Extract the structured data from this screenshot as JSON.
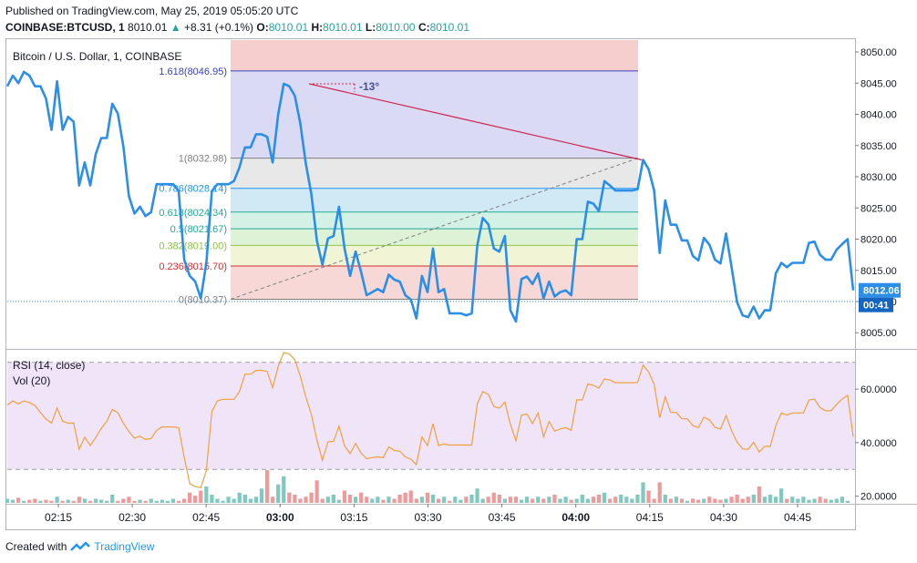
{
  "header": {
    "published": "Published on TradingView.com, May 25, 2019 05:05:20 UTC",
    "symbol": "COINBASE:BTCUSD, 1",
    "last": "8010.01",
    "change": "+8.31 (+0.1%)",
    "o_label": "O:",
    "o_value": "8010.01",
    "h_label": "H:",
    "h_value": "8010.01",
    "l_label": "L:",
    "l_value": "8010.00",
    "c_label": "C:",
    "c_value": "8010.01"
  },
  "colors": {
    "price_line": "#2b8ee8",
    "rsi_line": "#f2a03d",
    "rsi_band": "#e9d8f7",
    "vol_up": "#7fc9c0",
    "vol_down": "#ef9a9a",
    "trend_line": "#d0214b"
  },
  "chart_data": [
    {
      "type": "line",
      "title": "Bitcoin / U.S. Dollar, 1, COINBASE",
      "x_ticks": [
        "02:15",
        "02:30",
        "02:45",
        "03:00",
        "03:15",
        "03:30",
        "03:45",
        "04:00",
        "04:15",
        "04:30",
        "04:45"
      ],
      "y_ticks": [
        8005,
        8010,
        8015,
        8020,
        8025,
        8030,
        8035,
        8040,
        8045,
        8050
      ],
      "y_tick_labels": [
        "8005.00",
        "8010.00",
        "8015.00",
        "8020.00",
        "8025.00",
        "8030.00",
        "8035.00",
        "8040.00",
        "8045.00",
        "8050.00"
      ],
      "ylim": [
        8002.7,
        8051.9
      ],
      "series": [
        {
          "values": [
            8044.5,
            8046.2,
            8045,
            8046.8,
            8046.2,
            8044.5,
            8044.5,
            8042.5,
            8037.5,
            8045.3,
            8037.5,
            8039.6,
            8038.8,
            8028.6,
            8032.3,
            8028.6,
            8033.6,
            8036.2,
            8036.2,
            8041.7,
            8040.1,
            8034.8,
            8026.9,
            8024.1,
            8025.2,
            8023.7,
            8024.3,
            8028.8,
            8028.8,
            8028.8,
            8028.8,
            8027.7,
            8016.7,
            8014.1,
            8013.2,
            8010.5,
            8016.2,
            8027.7,
            8028.8,
            8028.8,
            8028.8,
            8029.3,
            8031.5,
            8034.7,
            8034.7,
            8036.8,
            8036.8,
            8036.4,
            8032.3,
            8040,
            8044.9,
            8044.5,
            8043,
            8038.5,
            8032.1,
            8027.2,
            8019.7,
            8015.9,
            8020.1,
            8020.5,
            8025.2,
            8018.5,
            8014.1,
            8018,
            8014.7,
            8011,
            8011.5,
            8012,
            8011.5,
            8014.3,
            8013.5,
            8013.2,
            8011,
            8010.3,
            8007.3,
            8014.1,
            8011.5,
            8018.5,
            8011.5,
            8012,
            8008.1,
            8008.1,
            8008.1,
            8007.8,
            8008.1,
            8019,
            8023.4,
            8022.4,
            8018.5,
            8018,
            8020.5,
            8008.6,
            8006.8,
            8013.6,
            8014,
            8012.8,
            8014.5,
            8010.5,
            8013.2,
            8010.8,
            8011.5,
            8011.8,
            8011,
            8020,
            8020,
            8026,
            8025.7,
            8024.5,
            8029.3,
            8028.6,
            8027.8,
            8027.8,
            8027.8,
            8027.8,
            8028,
            8032.7,
            8031.2,
            8027.8,
            8017.8,
            8026.2,
            8022.3,
            8022.3,
            8019.8,
            8019.8,
            8017.3,
            8016.6,
            8020.2,
            8019.1,
            8016.7,
            8016.1,
            8020.9,
            8015.5,
            8009.9,
            8007.8,
            8007.5,
            8009.2,
            8007.3,
            8008.6,
            8008.6,
            8014.5,
            8016.2,
            8015.5,
            8016.2,
            8016.2,
            8016.2,
            8019.4,
            8019.6,
            8017.5,
            8016.7,
            8016.7,
            8018.3,
            8019.2,
            8020,
            8011.8
          ]
        }
      ],
      "fib": {
        "levels": [
          {
            "ratio": 1.618,
            "label": "1.618(8046.95)",
            "color": "#3b3fbf"
          },
          {
            "ratio": 1,
            "label": "1(8032.98)",
            "color": "#7f7f7f"
          },
          {
            "ratio": 0.786,
            "label": "0.786(8028.14)",
            "color": "#2196f3"
          },
          {
            "ratio": 0.618,
            "label": "0.618(8024.34)",
            "color": "#22ab94"
          },
          {
            "ratio": 0.5,
            "label": "0.5(8021.67)",
            "color": "#26a69a"
          },
          {
            "ratio": 0.382,
            "label": "0.382(8019.00)",
            "color": "#8bc34a"
          },
          {
            "ratio": 0.236,
            "label": "0.236(8015.70)",
            "color": "#d32f2f"
          },
          {
            "ratio": 0,
            "label": "0(8010.37)",
            "color": "#7f7f7f"
          }
        ],
        "prices": [
          8046.95,
          8032.98,
          8028.14,
          8024.34,
          8021.67,
          8019.0,
          8015.7,
          8010.37
        ]
      },
      "trend_angle_label": "-13°",
      "last_price_label": "8012.06",
      "countdown_label": "00:41",
      "hidden_label_fragment": "80"
    },
    {
      "type": "line",
      "title": "RSI (14, close)",
      "y_ticks": [
        20,
        40,
        60
      ],
      "y_tick_labels": [
        "20.0000",
        "40.0000",
        "60.0000"
      ],
      "band": [
        30,
        70
      ],
      "ylim": [
        17.5,
        74
      ],
      "series": [
        {
          "name": "RSI (14, close)",
          "values": [
            54.1,
            55.6,
            54.5,
            55.6,
            55,
            53.9,
            51.3,
            48.8,
            47.3,
            52.9,
            48,
            47.3,
            47.3,
            37.5,
            42,
            38.9,
            41.9,
            45.3,
            48,
            52.4,
            51.2,
            47.2,
            44.1,
            41.7,
            42.4,
            41.2,
            41.5,
            44.6,
            45.9,
            45.9,
            45.9,
            45.6,
            34.5,
            24.7,
            23.6,
            23.2,
            29.6,
            51.6,
            55.6,
            56.2,
            56.2,
            56.2,
            59.1,
            65.6,
            65.6,
            67,
            67,
            66.6,
            60.5,
            68.5,
            73.7,
            73.2,
            71,
            64.8,
            57.1,
            50.5,
            40.9,
            33.4,
            40.3,
            40.5,
            46.2,
            38.8,
            35.9,
            39.7,
            36.1,
            34,
            34.4,
            34.7,
            34.4,
            38.4,
            37.1,
            36.8,
            34.7,
            33.8,
            31.8,
            42.1,
            38.9,
            47.1,
            38.9,
            39.5,
            39.1,
            39.1,
            39.1,
            39.1,
            39.1,
            54.5,
            59.1,
            58.1,
            53.5,
            52.9,
            55.1,
            46.9,
            40.7,
            50.3,
            50.7,
            47.1,
            51.1,
            42.2,
            47.9,
            44.3,
            45.1,
            45.6,
            44.6,
            56,
            56,
            62,
            61.4,
            60.4,
            63.8,
            63.4,
            62.4,
            62.4,
            62.4,
            62.4,
            62.5,
            69,
            66.4,
            61.9,
            49.3,
            57.1,
            51.3,
            51.3,
            48.9,
            48.9,
            46.4,
            45.6,
            49.5,
            48.5,
            45.7,
            45.1,
            50.1,
            44.5,
            40.2,
            37.7,
            37.5,
            40.1,
            36.5,
            38.6,
            38.6,
            46.3,
            51.1,
            50.3,
            51.1,
            51.1,
            51.1,
            55.9,
            56.3,
            53.1,
            51.9,
            51.9,
            54.3,
            56.3,
            57.7,
            42.2
          ]
        }
      ],
      "volume": {
        "label": "Vol (20)",
        "values": [
          2,
          1.5,
          2.5,
          1,
          1.5,
          2,
          1,
          1.5,
          1,
          3,
          1,
          1.5,
          1,
          3,
          2,
          1,
          2,
          1.5,
          1,
          4,
          1,
          2,
          3,
          1,
          1.5,
          1,
          2,
          1,
          1.5,
          1,
          2,
          1,
          2,
          5,
          3.5,
          6,
          8,
          4,
          2,
          1,
          3,
          2,
          5,
          4,
          2,
          3,
          7,
          16,
          3,
          9,
          13,
          5,
          4,
          2,
          3,
          5,
          11,
          2,
          3,
          4,
          1.5,
          6,
          4,
          3,
          5,
          3,
          2,
          3,
          1.5,
          3,
          2,
          4,
          5,
          6,
          2,
          3,
          5,
          4,
          2,
          3,
          1,
          3,
          1.5,
          3,
          4,
          7,
          2,
          3,
          5,
          4,
          2,
          3,
          3,
          1.5,
          3,
          2,
          3,
          2,
          3,
          4,
          2,
          3,
          1.5,
          2,
          4,
          2,
          3,
          4,
          5,
          2,
          3,
          4,
          3,
          2,
          4,
          10,
          6,
          2,
          10,
          4,
          2,
          3,
          2,
          1,
          2,
          1.5,
          2,
          3,
          2,
          1.5,
          2,
          3,
          4,
          2,
          3,
          4,
          8,
          3,
          4,
          3,
          7,
          2,
          3,
          2,
          3,
          1.5,
          2,
          3,
          2,
          1.5,
          2,
          3,
          1
        ],
        "max": 16
      }
    }
  ],
  "footer": {
    "created_with": "Created with",
    "brand": "TradingView"
  }
}
